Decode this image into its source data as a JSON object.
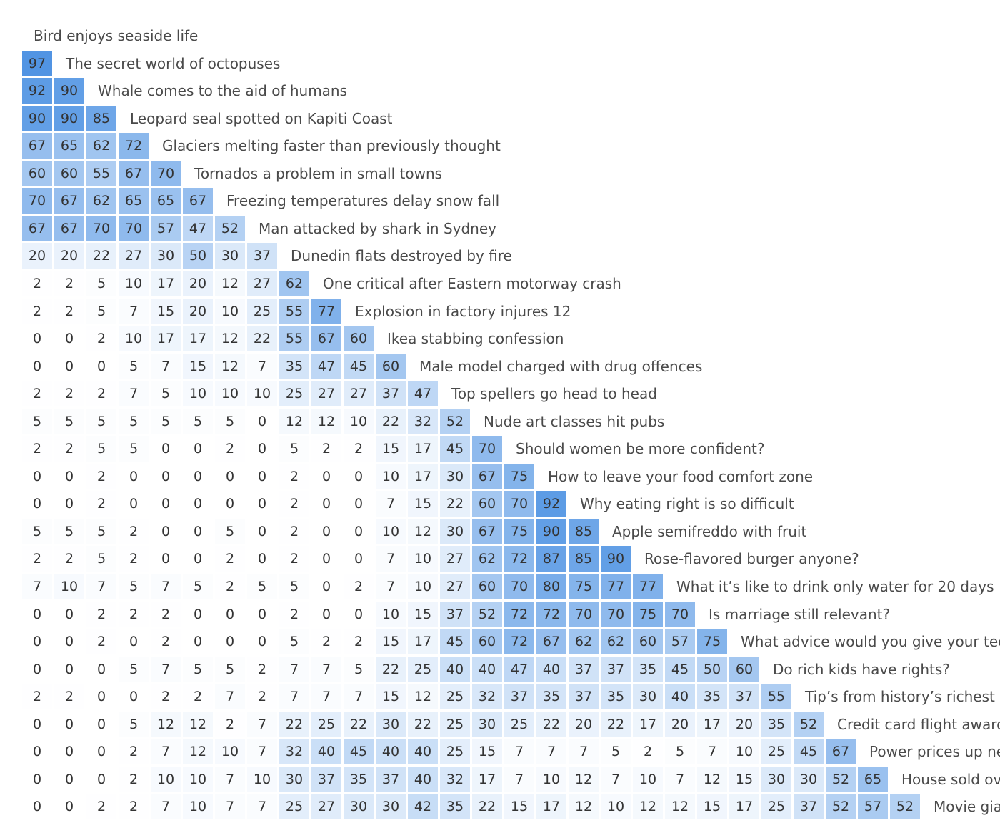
{
  "chart_data": {
    "type": "heatmap",
    "layout": "lower-triangular similarity matrix",
    "color_scale": {
      "low": "#ffffff",
      "high": "#4a90e2"
    },
    "rows": [
      {
        "label": "Bird enjoys seaside life",
        "values": []
      },
      {
        "label": "The secret world of octopuses",
        "values": [
          97
        ]
      },
      {
        "label": "Whale comes to the aid of humans",
        "values": [
          92,
          90
        ]
      },
      {
        "label": "Leopard seal spotted on Kapiti Coast",
        "values": [
          90,
          90,
          85
        ]
      },
      {
        "label": "Glaciers melting faster than previously thought",
        "values": [
          67,
          65,
          62,
          72
        ]
      },
      {
        "label": "Tornados a problem in small towns",
        "values": [
          60,
          60,
          55,
          67,
          70
        ]
      },
      {
        "label": "Freezing temperatures delay snow fall",
        "values": [
          70,
          67,
          62,
          65,
          65,
          67
        ]
      },
      {
        "label": "Man attacked by shark in Sydney",
        "values": [
          67,
          67,
          70,
          70,
          57,
          47,
          52
        ]
      },
      {
        "label": "Dunedin flats destroyed by fire",
        "values": [
          20,
          20,
          22,
          27,
          30,
          50,
          30,
          37
        ]
      },
      {
        "label": "One critical after Eastern motorway crash",
        "values": [
          2,
          2,
          5,
          10,
          17,
          20,
          12,
          27,
          62
        ]
      },
      {
        "label": "Explosion in factory injures 12",
        "values": [
          2,
          2,
          5,
          7,
          15,
          20,
          10,
          25,
          55,
          77
        ]
      },
      {
        "label": "Ikea stabbing confession",
        "values": [
          0,
          0,
          2,
          10,
          17,
          17,
          12,
          22,
          55,
          67,
          60
        ]
      },
      {
        "label": "Male model charged with drug offences",
        "values": [
          0,
          0,
          0,
          5,
          7,
          15,
          12,
          7,
          35,
          47,
          45,
          60
        ]
      },
      {
        "label": "Top spellers go head to head",
        "values": [
          2,
          2,
          2,
          7,
          5,
          10,
          10,
          10,
          25,
          27,
          27,
          37,
          47
        ]
      },
      {
        "label": "Nude art classes hit pubs",
        "values": [
          5,
          5,
          5,
          5,
          5,
          5,
          5,
          0,
          12,
          12,
          10,
          22,
          32,
          52
        ]
      },
      {
        "label": "Should women be more confident?",
        "values": [
          2,
          2,
          5,
          5,
          0,
          0,
          2,
          0,
          5,
          2,
          2,
          15,
          17,
          45,
          70
        ]
      },
      {
        "label": "How to leave your food comfort zone",
        "values": [
          0,
          0,
          2,
          0,
          0,
          0,
          0,
          0,
          2,
          0,
          0,
          10,
          17,
          30,
          67,
          75
        ]
      },
      {
        "label": "Why eating right is so difficult",
        "values": [
          0,
          0,
          2,
          0,
          0,
          0,
          0,
          0,
          2,
          0,
          0,
          7,
          15,
          22,
          60,
          70,
          92
        ]
      },
      {
        "label": "Apple semifreddo with fruit",
        "values": [
          5,
          5,
          5,
          2,
          0,
          0,
          5,
          0,
          2,
          0,
          0,
          10,
          12,
          30,
          67,
          75,
          90,
          85
        ]
      },
      {
        "label": "Rose-flavored burger anyone?",
        "values": [
          2,
          2,
          5,
          2,
          0,
          0,
          2,
          0,
          2,
          0,
          0,
          7,
          10,
          27,
          62,
          72,
          87,
          85,
          90
        ]
      },
      {
        "label": "What it’s like to drink only water for 20 days",
        "values": [
          7,
          10,
          7,
          5,
          7,
          5,
          2,
          5,
          5,
          0,
          2,
          7,
          10,
          27,
          60,
          70,
          80,
          75,
          77,
          77
        ]
      },
      {
        "label": "Is marriage still relevant?",
        "values": [
          0,
          0,
          2,
          2,
          2,
          0,
          0,
          0,
          2,
          0,
          0,
          10,
          15,
          37,
          52,
          72,
          72,
          70,
          70,
          75,
          70
        ]
      },
      {
        "label": "What advice would you give your teen",
        "values": [
          0,
          0,
          2,
          0,
          2,
          0,
          0,
          0,
          5,
          2,
          2,
          15,
          17,
          45,
          60,
          72,
          67,
          62,
          62,
          60,
          57,
          75
        ]
      },
      {
        "label": "Do rich kids have rights?",
        "values": [
          0,
          0,
          0,
          5,
          7,
          5,
          5,
          2,
          7,
          7,
          5,
          22,
          25,
          40,
          40,
          47,
          40,
          37,
          37,
          35,
          45,
          50,
          60
        ]
      },
      {
        "label": "Tip’s from history’s richest m",
        "values": [
          2,
          2,
          0,
          0,
          2,
          2,
          7,
          2,
          7,
          7,
          7,
          15,
          12,
          25,
          32,
          37,
          35,
          37,
          35,
          30,
          40,
          35,
          37,
          55
        ]
      },
      {
        "label": "Credit card flight awards",
        "values": [
          0,
          0,
          0,
          5,
          12,
          12,
          2,
          7,
          22,
          25,
          22,
          30,
          22,
          25,
          30,
          25,
          22,
          20,
          22,
          17,
          20,
          17,
          20,
          35,
          52
        ]
      },
      {
        "label": "Power prices up ne",
        "values": [
          0,
          0,
          0,
          2,
          7,
          12,
          10,
          7,
          32,
          40,
          45,
          40,
          40,
          25,
          15,
          7,
          7,
          7,
          5,
          2,
          5,
          7,
          10,
          25,
          45,
          67
        ]
      },
      {
        "label": "House sold ov",
        "values": [
          0,
          0,
          0,
          2,
          10,
          10,
          7,
          10,
          30,
          37,
          35,
          37,
          40,
          32,
          17,
          7,
          10,
          12,
          7,
          10,
          7,
          12,
          15,
          30,
          30,
          52,
          65
        ]
      },
      {
        "label": "Movie gia",
        "values": [
          0,
          0,
          2,
          2,
          7,
          10,
          7,
          7,
          25,
          27,
          30,
          30,
          42,
          35,
          22,
          15,
          17,
          12,
          10,
          12,
          12,
          15,
          17,
          25,
          37,
          52,
          57,
          52
        ]
      }
    ]
  }
}
